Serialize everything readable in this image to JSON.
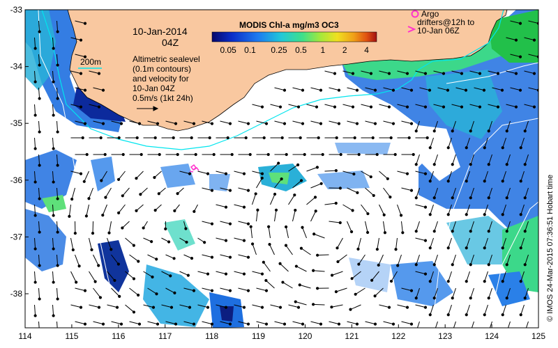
{
  "map": {
    "date": "10-Jan-2014",
    "time": "04Z",
    "lon_range": [
      114,
      125
    ],
    "lat_range": [
      -38.6,
      -33
    ],
    "lon_ticks": [
      "114",
      "115",
      "116",
      "117",
      "118",
      "119",
      "120",
      "121",
      "122",
      "123",
      "124",
      "125"
    ],
    "lat_ticks": [
      "-33",
      "-34",
      "-35",
      "-36",
      "-37",
      "-38"
    ],
    "land_color": "#f9c8a0",
    "coast_contour_color": "#00e5ee",
    "isobath_label": "200m",
    "altimetry_text": [
      "Altimetric sealevel",
      "(0.1m contours)",
      "and velocity for",
      "10-Jan 04Z"
    ],
    "velocity_scale_label": "0.5m/s (1kt 24h)",
    "colorbar": {
      "title": "MODIS Chl-a mg/m3 OC3",
      "ticks": [
        "0.05",
        "0.1",
        "0.25",
        "0.5",
        "1",
        "2",
        "4"
      ],
      "colors": [
        "#08086b",
        "#0a2ec8",
        "#1e7bf0",
        "#22c8d8",
        "#3ee08a",
        "#a6e83a",
        "#f0e020",
        "#f0a018",
        "#e05010",
        "#a01010"
      ]
    },
    "argo": {
      "label": "Argo",
      "color": "#ff33cc",
      "drifter_lines": [
        "drifters@12h to",
        "10-Jan 06Z"
      ]
    },
    "credit": "© IMOS 24-Mar-2015 07:36:51 Hobart time"
  }
}
